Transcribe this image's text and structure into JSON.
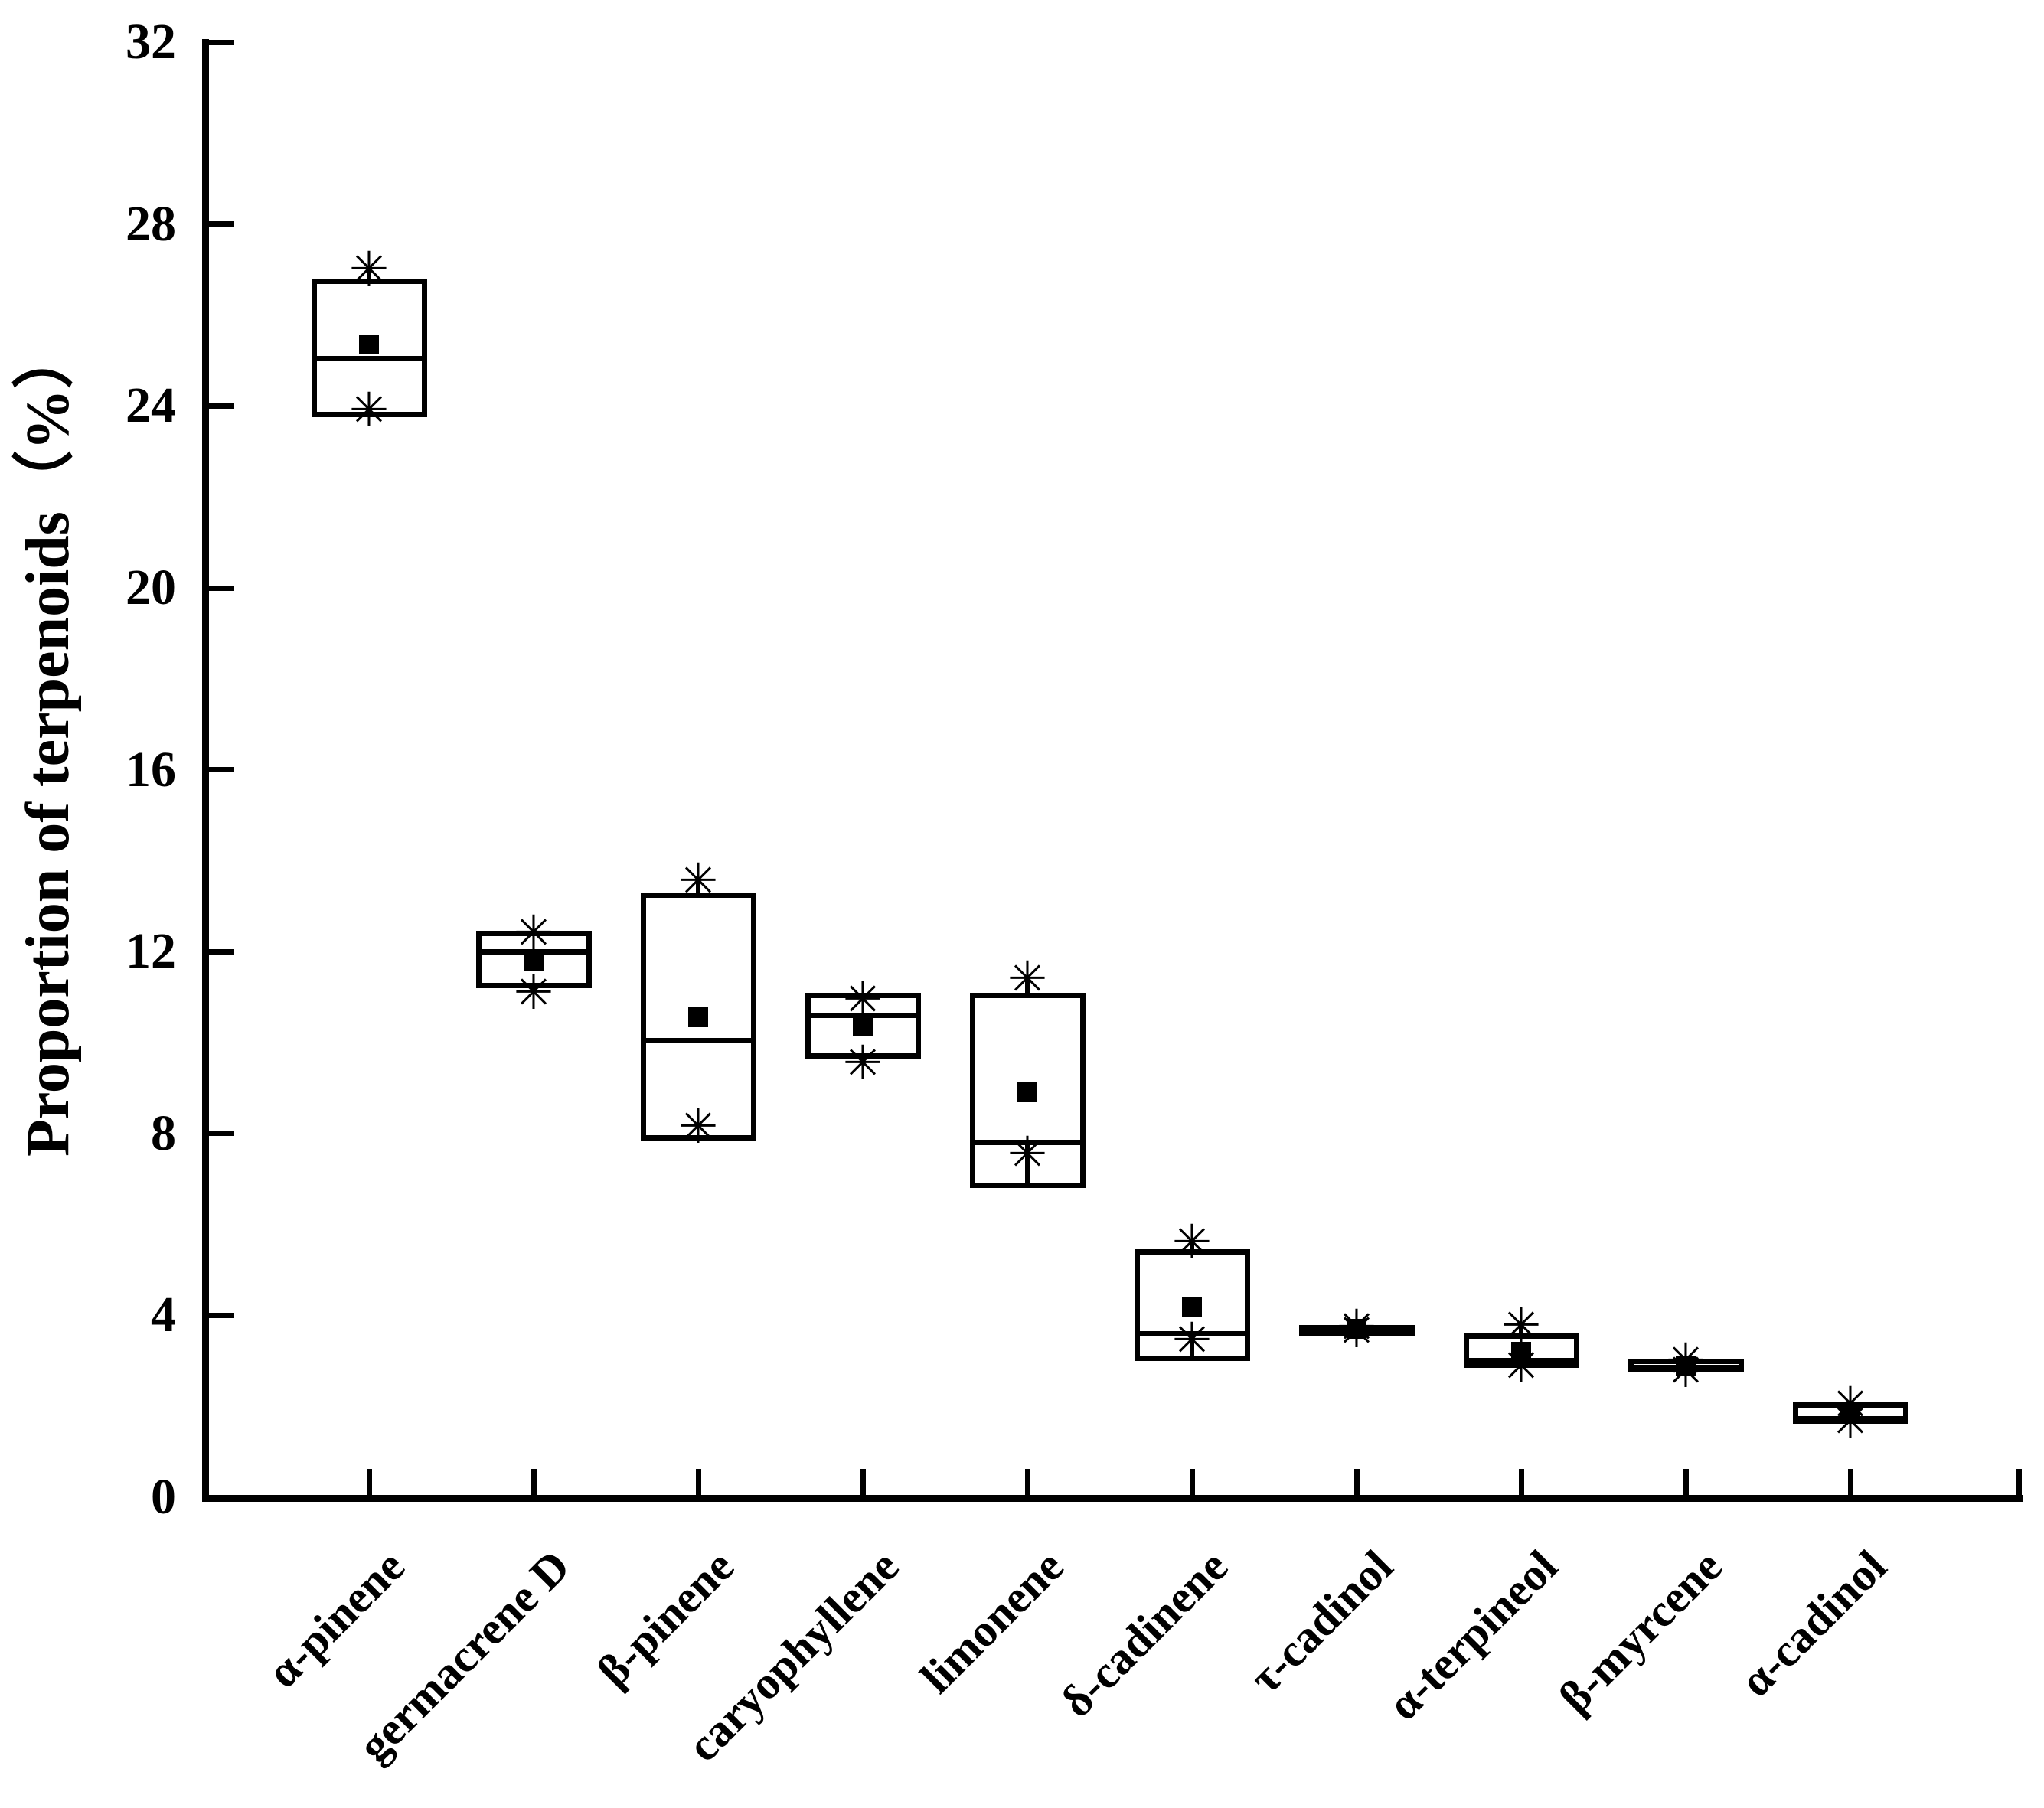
{
  "chart_data": {
    "type": "box",
    "title": "",
    "ylabel": "Proportion of terpenoids（%）",
    "xlabel": "",
    "ylim": [
      0,
      32
    ],
    "yticks": [
      0,
      4,
      8,
      12,
      16,
      20,
      24,
      28,
      32
    ],
    "grid": false,
    "legend": "none",
    "extreme_marker_glyph": "✳",
    "mean_marker_glyph": "■",
    "categories": [
      "α-pinene",
      "germacrene D",
      "β-pinene",
      "caryophyllene",
      "limonene",
      "δ-cadinene",
      "τ-cadinol",
      "α-terpineol",
      "β-myrcene",
      "α-cadinol"
    ],
    "series": [
      {
        "name": "α-pinene",
        "q1": 23.75,
        "median": 25.05,
        "q3": 26.8,
        "mean": 25.35,
        "star_high": 27.0,
        "star_low": 23.9
      },
      {
        "name": "germacrene D",
        "q1": 11.2,
        "median": 12.0,
        "q3": 12.45,
        "mean": 11.8,
        "star_high": 12.4,
        "star_low": 11.1
      },
      {
        "name": "β-pinene",
        "q1": 7.85,
        "median": 10.05,
        "q3": 13.3,
        "mean": 10.55,
        "star_high": 13.55,
        "star_low": 8.15
      },
      {
        "name": "caryophyllene",
        "q1": 9.65,
        "median": 10.6,
        "q3": 11.1,
        "mean": 10.35,
        "star_high": 10.95,
        "star_low": 9.55
      },
      {
        "name": "limonene",
        "q1": 6.8,
        "median": 7.8,
        "q3": 11.1,
        "mean": 8.9,
        "star_high": 11.4,
        "star_low": 7.55,
        "inner_line": [
          7.8,
          6.8
        ]
      },
      {
        "name": "δ-cadinene",
        "q1": 3.0,
        "median": 3.6,
        "q3": 5.45,
        "mean": 4.2,
        "star_high": 5.6,
        "star_low": 3.45,
        "inner_line": [
          3.45,
          3.0
        ]
      },
      {
        "name": "τ-cadinol",
        "q1": 3.6,
        "median": 3.69,
        "q3": 3.78,
        "mean": 3.7,
        "star_high": 3.74,
        "star_low": 3.65
      },
      {
        "name": "α-terpineol",
        "q1": 2.84,
        "median": 3.0,
        "q3": 3.6,
        "mean": 3.2,
        "star_high": 3.77,
        "star_low": 2.88
      },
      {
        "name": "β-myrcene",
        "q1": 2.74,
        "median": 2.85,
        "q3": 3.05,
        "mean": 2.9,
        "star_high": 3.0,
        "star_low": 2.78
      },
      {
        "name": "α-cadinol",
        "q1": 1.62,
        "median": 1.73,
        "q3": 2.09,
        "mean": 1.87,
        "star_high": 2.04,
        "star_low": 1.66
      }
    ]
  }
}
